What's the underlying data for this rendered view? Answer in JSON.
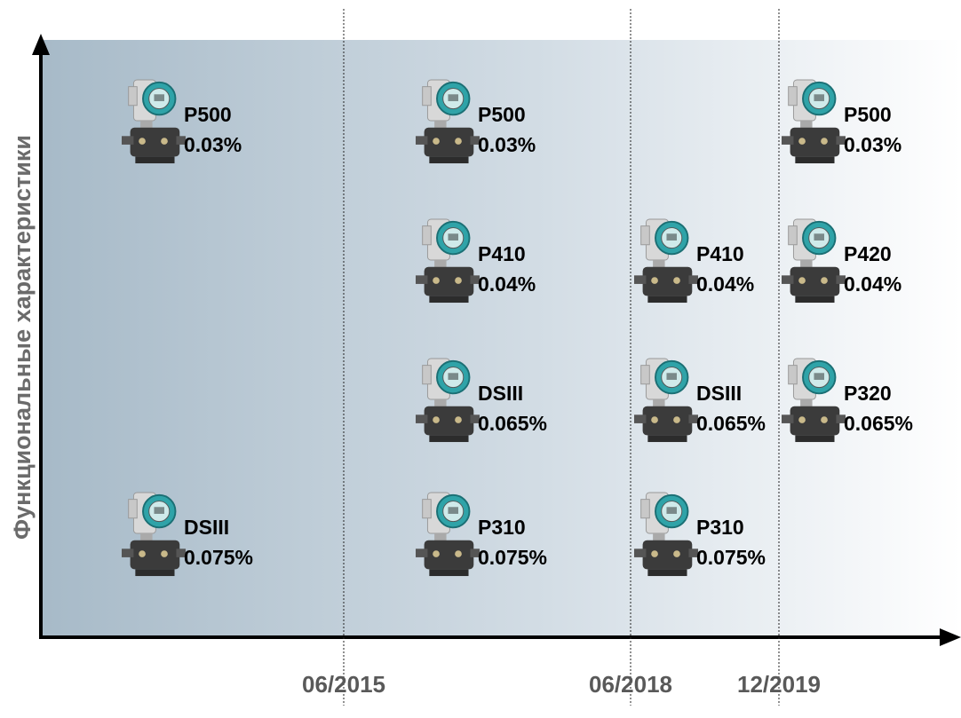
{
  "axis": {
    "y_label": "Функциональные характеристики"
  },
  "dates": [
    "06/2015",
    "06/2018",
    "12/2019"
  ],
  "columns": [
    {
      "items": [
        {
          "name": "P500",
          "accuracy": "0.03%"
        },
        {
          "name": "DSIII",
          "accuracy": "0.075%"
        }
      ]
    },
    {
      "items": [
        {
          "name": "P500",
          "accuracy": "0.03%"
        },
        {
          "name": "P410",
          "accuracy": "0.04%"
        },
        {
          "name": "DSIII",
          "accuracy": "0.065%"
        },
        {
          "name": "P310",
          "accuracy": "0.075%"
        }
      ]
    },
    {
      "items": [
        {
          "name": "P410",
          "accuracy": "0.04%"
        },
        {
          "name": "DSIII",
          "accuracy": "0.065%"
        },
        {
          "name": "P310",
          "accuracy": "0.075%"
        }
      ]
    },
    {
      "items": [
        {
          "name": "P500",
          "accuracy": "0.03%"
        },
        {
          "name": "P420",
          "accuracy": "0.04%"
        },
        {
          "name": "P320",
          "accuracy": "0.065%"
        }
      ]
    }
  ]
}
